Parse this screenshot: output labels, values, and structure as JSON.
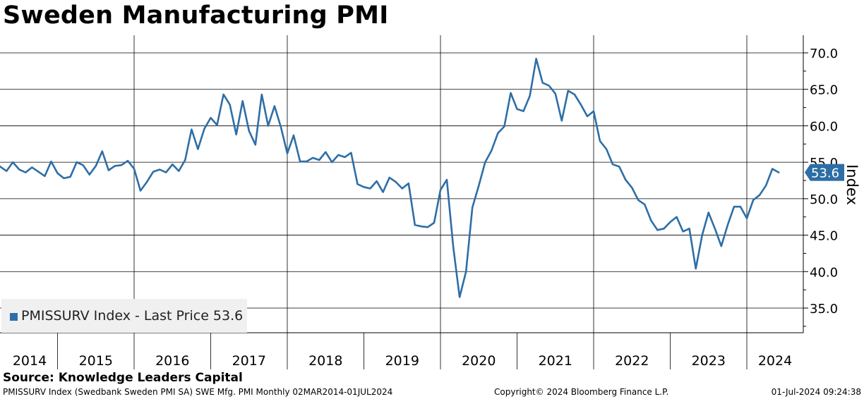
{
  "title": "Sweden Manufacturing PMI",
  "legend": {
    "text": "PMISSURV Index - Last Price 53.6",
    "color": "#2e6ea6"
  },
  "source": "Source: Knowledge Leaders Capital",
  "footer": {
    "left": "PMISSURV Index (Swedbank Sweden PMI SA) SWE Mfg. PMI  Monthly 02MAR2014-01JUL2024",
    "middle": "Copyright© 2024 Bloomberg Finance L.P.",
    "right": "01-Jul-2024 09:24:38"
  },
  "chart_data": {
    "type": "line",
    "ylabel": "Index",
    "ylim": [
      31,
      72
    ],
    "yticks": [
      35,
      40,
      45,
      50,
      55,
      60,
      65,
      70
    ],
    "ytick_labels": [
      "35.0",
      "40.0",
      "45.0",
      "50.0",
      "55.0",
      "60.0",
      "65.0",
      "70.0"
    ],
    "years": [
      "2014",
      "2015",
      "2016",
      "2017",
      "2018",
      "2019",
      "2020",
      "2021",
      "2022",
      "2023",
      "2024"
    ],
    "last_value": 53.6,
    "last_value_label": "53.6",
    "grid": true,
    "line_color": "#2e6ea6",
    "series": [
      {
        "x_start": "2014-03",
        "x_end": "2024-06",
        "frequency": "monthly",
        "values": [
          55.3,
          54.4,
          53.8,
          55.0,
          54.0,
          53.6,
          54.3,
          53.7,
          53.1,
          55.1,
          53.5,
          52.8,
          53.0,
          55.0,
          54.6,
          53.3,
          54.5,
          56.5,
          53.9,
          54.5,
          54.6,
          55.2,
          54.1,
          51.1,
          52.3,
          53.7,
          54.0,
          53.6,
          54.7,
          53.8,
          55.3,
          59.5,
          56.8,
          59.6,
          61.1,
          60.1,
          64.3,
          62.9,
          58.8,
          63.4,
          59.3,
          57.4,
          64.3,
          60.0,
          62.7,
          59.8,
          56.2,
          58.7,
          55.1,
          55.1,
          55.6,
          55.3,
          56.4,
          55.0,
          56.0,
          55.7,
          56.3,
          52.0,
          51.6,
          51.4,
          52.4,
          50.9,
          52.9,
          52.3,
          51.4,
          52.1,
          46.4,
          46.2,
          46.1,
          46.7,
          51.2,
          52.6,
          43.4,
          36.5,
          40.0,
          48.8,
          51.8,
          55.0,
          56.6,
          59.0,
          59.9,
          64.5,
          62.3,
          62.0,
          64.1,
          69.2,
          65.9,
          65.5,
          64.4,
          60.7,
          64.8,
          64.3,
          62.9,
          61.3,
          62.0,
          57.9,
          56.8,
          54.7,
          54.4,
          52.6,
          51.5,
          49.8,
          49.2,
          47.0,
          45.7,
          45.9,
          46.8,
          47.5,
          45.5,
          45.9,
          40.4,
          45.0,
          48.1,
          45.9,
          43.5,
          46.4,
          48.9,
          48.9,
          47.3,
          49.8,
          50.5,
          51.8,
          54.1,
          53.6
        ]
      }
    ]
  }
}
